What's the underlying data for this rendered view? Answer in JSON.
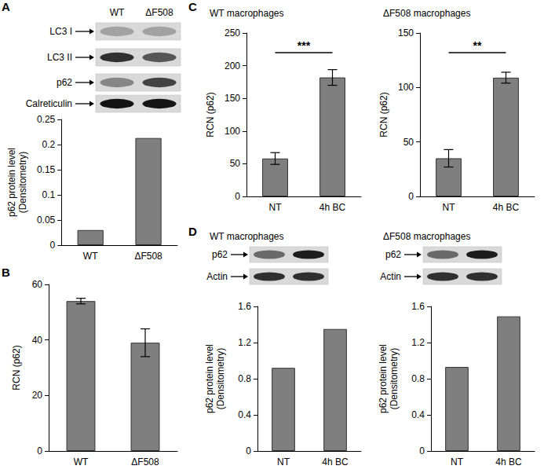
{
  "panel_labels": [
    "A",
    "B",
    "C",
    "D"
  ],
  "blots": [
    {
      "lanes": [
        "WT",
        "ΔF508"
      ],
      "rows": [
        "LC3 I",
        "LC3 II",
        "p62",
        "Calreticulin"
      ]
    },
    {
      "rows": [
        "p62",
        "Actin"
      ]
    },
    {
      "rows": [
        "p62",
        "Actin"
      ]
    }
  ],
  "chart_data": [
    {
      "type": "bar",
      "categories": [
        "WT",
        "ΔF508"
      ],
      "values": [
        0.03,
        0.213
      ],
      "color": "#7f7f7f",
      "ylabel": "p62 protein level\n(Densitometry)",
      "ylim": [
        0,
        0.25
      ],
      "yticks": [
        0,
        0.05,
        0.1,
        0.15,
        0.2,
        0.25
      ],
      "grid": false
    },
    {
      "type": "bar",
      "categories": [
        "WT",
        "ΔF508"
      ],
      "values": [
        54,
        39
      ],
      "errors": [
        1,
        5
      ],
      "color": "#7f7f7f",
      "ylabel": "RCN (p62)",
      "ylim": [
        0,
        60
      ],
      "yticks": [
        0,
        20,
        40,
        60
      ],
      "grid": false
    },
    {
      "type": "bar",
      "title": "WT macrophages",
      "categories": [
        "NT",
        "4h BC"
      ],
      "values": [
        58,
        182
      ],
      "errors": [
        9,
        12
      ],
      "color": "#7f7f7f",
      "ylabel": "RCN (p62)",
      "ylim": [
        0,
        250
      ],
      "yticks": [
        0,
        50,
        100,
        150,
        200,
        250
      ],
      "grid": false,
      "annotations": [
        {
          "text": "***",
          "between": [
            "NT",
            "4h BC"
          ]
        }
      ]
    },
    {
      "type": "bar",
      "title": "ΔF508 macrophages",
      "categories": [
        "NT",
        "4h BC"
      ],
      "values": [
        35,
        109
      ],
      "errors": [
        8,
        5
      ],
      "color": "#7f7f7f",
      "ylabel": "RCN (p62)",
      "ylim": [
        0,
        150
      ],
      "yticks": [
        0,
        50,
        100,
        150
      ],
      "grid": false,
      "annotations": [
        {
          "text": "**",
          "between": [
            "NT",
            "4h BC"
          ]
        }
      ]
    },
    {
      "type": "bar",
      "title": "WT macrophages",
      "categories": [
        "NT",
        "4h BC"
      ],
      "values": [
        0.92,
        1.35
      ],
      "color": "#7f7f7f",
      "ylabel": "p62 protein level\n(Densitometry)",
      "ylim": [
        0,
        1.6
      ],
      "yticks": [
        0,
        0.4,
        0.8,
        1.2,
        1.6
      ],
      "grid": false
    },
    {
      "type": "bar",
      "title": "ΔF508 macrophages",
      "categories": [
        "NT",
        "4h BC"
      ],
      "values": [
        0.93,
        1.49
      ],
      "color": "#7f7f7f",
      "ylabel": "p62 protein level\n(Densitometry)",
      "ylim": [
        0,
        1.6
      ],
      "yticks": [
        0,
        0.4,
        0.8,
        1.2,
        1.6
      ],
      "grid": false
    }
  ]
}
